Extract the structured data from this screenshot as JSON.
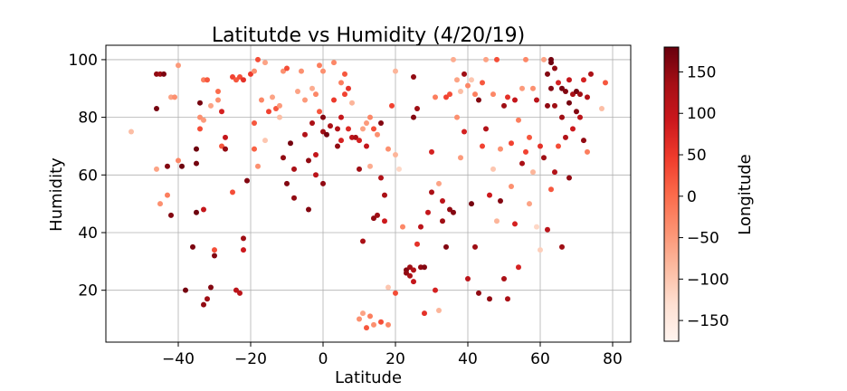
{
  "chart_data": {
    "type": "scatter",
    "title": "Latitutde vs Humidity (4/20/19)",
    "xlabel": "Latitude",
    "ylabel": "Humidity",
    "colorbar_label": "Longitude",
    "xlim": [
      -60,
      85
    ],
    "ylim": [
      2,
      105
    ],
    "clim": [
      -175,
      180
    ],
    "xticks": [
      -40,
      -20,
      0,
      20,
      40,
      60,
      80
    ],
    "yticks": [
      20,
      40,
      60,
      80,
      100
    ],
    "cticks": [
      -150,
      -100,
      -50,
      0,
      50,
      100,
      150
    ],
    "colormap": "Reds",
    "grid": true,
    "points": [
      {
        "x": -53,
        "y": 75,
        "c": -90
      },
      {
        "x": -46,
        "y": 95,
        "c": 150
      },
      {
        "x": -45,
        "y": 95,
        "c": 140
      },
      {
        "x": -44,
        "y": 95,
        "c": 165
      },
      {
        "x": -46,
        "y": 83,
        "c": 170
      },
      {
        "x": -46,
        "y": 62,
        "c": -60
      },
      {
        "x": -43,
        "y": 63,
        "c": 160
      },
      {
        "x": -42,
        "y": 87,
        "c": -60
      },
      {
        "x": -41,
        "y": 87,
        "c": -40
      },
      {
        "x": -40,
        "y": 98,
        "c": -50
      },
      {
        "x": -40,
        "y": 65,
        "c": -30
      },
      {
        "x": -39,
        "y": 63,
        "c": 175
      },
      {
        "x": -43,
        "y": 53,
        "c": -20
      },
      {
        "x": -45,
        "y": 50,
        "c": -40
      },
      {
        "x": -42,
        "y": 46,
        "c": 160
      },
      {
        "x": -38,
        "y": 20,
        "c": 170
      },
      {
        "x": -36,
        "y": 35,
        "c": 165
      },
      {
        "x": -35,
        "y": 47,
        "c": 175
      },
      {
        "x": -35,
        "y": 64,
        "c": 170
      },
      {
        "x": -35,
        "y": 69,
        "c": 175
      },
      {
        "x": -34,
        "y": 85,
        "c": 170
      },
      {
        "x": -34,
        "y": 80,
        "c": -40
      },
      {
        "x": -33,
        "y": 93,
        "c": -20
      },
      {
        "x": -32,
        "y": 93,
        "c": 20
      },
      {
        "x": -34,
        "y": 76,
        "c": 30
      },
      {
        "x": -33,
        "y": 79,
        "c": -50
      },
      {
        "x": -33,
        "y": 48,
        "c": 100
      },
      {
        "x": -33,
        "y": 15,
        "c": 150
      },
      {
        "x": -32,
        "y": 17,
        "c": 140
      },
      {
        "x": -31,
        "y": 21,
        "c": 160
      },
      {
        "x": -30,
        "y": 34,
        "c": 30
      },
      {
        "x": -30,
        "y": 32,
        "c": 160
      },
      {
        "x": -31,
        "y": 84,
        "c": -60
      },
      {
        "x": -29,
        "y": 89,
        "c": 0
      },
      {
        "x": -29,
        "y": 86,
        "c": -40
      },
      {
        "x": -28,
        "y": 70,
        "c": 20
      },
      {
        "x": -27,
        "y": 73,
        "c": 100
      },
      {
        "x": -28,
        "y": 82,
        "c": 80
      },
      {
        "x": -27,
        "y": 69,
        "c": 150
      },
      {
        "x": -25,
        "y": 94,
        "c": 40
      },
      {
        "x": -24,
        "y": 93,
        "c": 20
      },
      {
        "x": -23,
        "y": 94,
        "c": 30
      },
      {
        "x": -22,
        "y": 93,
        "c": 60
      },
      {
        "x": -25,
        "y": 54,
        "c": 30
      },
      {
        "x": -24,
        "y": 20,
        "c": 110
      },
      {
        "x": -22,
        "y": 38,
        "c": 140
      },
      {
        "x": -23,
        "y": 19,
        "c": 110
      },
      {
        "x": -22,
        "y": 34,
        "c": 90
      },
      {
        "x": -21,
        "y": 58,
        "c": 160
      },
      {
        "x": -20,
        "y": 95,
        "c": 50
      },
      {
        "x": -19,
        "y": 96,
        "c": -40
      },
      {
        "x": -18,
        "y": 100,
        "c": 30
      },
      {
        "x": -17,
        "y": 86,
        "c": -30
      },
      {
        "x": -16,
        "y": 99,
        "c": -60
      },
      {
        "x": -15,
        "y": 82,
        "c": 40
      },
      {
        "x": -14,
        "y": 87,
        "c": -60
      },
      {
        "x": -13,
        "y": 83,
        "c": 20
      },
      {
        "x": -12,
        "y": 84,
        "c": -50
      },
      {
        "x": -11,
        "y": 96,
        "c": -40
      },
      {
        "x": -10,
        "y": 97,
        "c": 30
      },
      {
        "x": -19,
        "y": 78,
        "c": 20
      },
      {
        "x": -19,
        "y": 69,
        "c": 10
      },
      {
        "x": -18,
        "y": 63,
        "c": -40
      },
      {
        "x": -16,
        "y": 72,
        "c": -100
      },
      {
        "x": -12,
        "y": 80,
        "c": -90
      },
      {
        "x": -11,
        "y": 66,
        "c": 150
      },
      {
        "x": -10,
        "y": 57,
        "c": 160
      },
      {
        "x": -9,
        "y": 71,
        "c": 170
      },
      {
        "x": -8,
        "y": 62,
        "c": 130
      },
      {
        "x": -8,
        "y": 52,
        "c": 150
      },
      {
        "x": -7,
        "y": 89,
        "c": -60
      },
      {
        "x": -6,
        "y": 96,
        "c": -40
      },
      {
        "x": -5,
        "y": 86,
        "c": -50
      },
      {
        "x": -5,
        "y": 74,
        "c": 120
      },
      {
        "x": -4,
        "y": 65,
        "c": 150
      },
      {
        "x": -4,
        "y": 48,
        "c": 160
      },
      {
        "x": -3,
        "y": 90,
        "c": -70
      },
      {
        "x": -3,
        "y": 78,
        "c": 130
      },
      {
        "x": -2,
        "y": 88,
        "c": -30
      },
      {
        "x": -2,
        "y": 67,
        "c": 100
      },
      {
        "x": -2,
        "y": 60,
        "c": 110
      },
      {
        "x": -1,
        "y": 98,
        "c": -20
      },
      {
        "x": -1,
        "y": 82,
        "c": 20
      },
      {
        "x": 0,
        "y": 96,
        "c": -40
      },
      {
        "x": 0,
        "y": 80,
        "c": 160
      },
      {
        "x": 0,
        "y": 75,
        "c": 140
      },
      {
        "x": 0,
        "y": 57,
        "c": 150
      },
      {
        "x": 1,
        "y": 74,
        "c": 170
      },
      {
        "x": 2,
        "y": 77,
        "c": 130
      },
      {
        "x": 3,
        "y": 99,
        "c": -30
      },
      {
        "x": 3,
        "y": 86,
        "c": 50
      },
      {
        "x": 4,
        "y": 76,
        "c": 120
      },
      {
        "x": 4,
        "y": 70,
        "c": 150
      },
      {
        "x": 5,
        "y": 72,
        "c": 80
      },
      {
        "x": 5,
        "y": 80,
        "c": 100
      },
      {
        "x": 5,
        "y": 92,
        "c": -20
      },
      {
        "x": 6,
        "y": 95,
        "c": 20
      },
      {
        "x": 6,
        "y": 88,
        "c": 40
      },
      {
        "x": 7,
        "y": 90,
        "c": 60
      },
      {
        "x": 7,
        "y": 76,
        "c": 70
      },
      {
        "x": 8,
        "y": 73,
        "c": 110
      },
      {
        "x": 8,
        "y": 85,
        "c": -80
      },
      {
        "x": 9,
        "y": 73,
        "c": 130
      },
      {
        "x": 10,
        "y": 72,
        "c": 80
      },
      {
        "x": 10,
        "y": 62,
        "c": 140
      },
      {
        "x": 11,
        "y": 76,
        "c": -60
      },
      {
        "x": 11,
        "y": 37,
        "c": 130
      },
      {
        "x": 12,
        "y": 78,
        "c": -50
      },
      {
        "x": 12,
        "y": 70,
        "c": 100
      },
      {
        "x": 13,
        "y": 63,
        "c": -70
      },
      {
        "x": 13,
        "y": 80,
        "c": -30
      },
      {
        "x": 14,
        "y": 76,
        "c": 30
      },
      {
        "x": 14,
        "y": 45,
        "c": 150
      },
      {
        "x": 15,
        "y": 74,
        "c": -40
      },
      {
        "x": 15,
        "y": 46,
        "c": 140
      },
      {
        "x": 16,
        "y": 78,
        "c": 160
      },
      {
        "x": 16,
        "y": 59,
        "c": 120
      },
      {
        "x": 17,
        "y": 53,
        "c": 130
      },
      {
        "x": 17,
        "y": 44,
        "c": 90
      },
      {
        "x": 18,
        "y": 69,
        "c": -40
      },
      {
        "x": 18,
        "y": 21,
        "c": -100
      },
      {
        "x": 10,
        "y": 10,
        "c": -40
      },
      {
        "x": 11,
        "y": 12,
        "c": -60
      },
      {
        "x": 12,
        "y": 7,
        "c": 20
      },
      {
        "x": 13,
        "y": 11,
        "c": -20
      },
      {
        "x": 14,
        "y": 8,
        "c": -40
      },
      {
        "x": 16,
        "y": 9,
        "c": 30
      },
      {
        "x": 18,
        "y": 8,
        "c": -30
      },
      {
        "x": 19,
        "y": 84,
        "c": 40
      },
      {
        "x": 20,
        "y": 96,
        "c": -80
      },
      {
        "x": 20,
        "y": 67,
        "c": -80
      },
      {
        "x": 20,
        "y": 19,
        "c": 30
      },
      {
        "x": 21,
        "y": 62,
        "c": -120
      },
      {
        "x": 22,
        "y": 42,
        "c": -30
      },
      {
        "x": 23,
        "y": 27,
        "c": 160
      },
      {
        "x": 23,
        "y": 26,
        "c": 150
      },
      {
        "x": 24,
        "y": 28,
        "c": 140
      },
      {
        "x": 24,
        "y": 25,
        "c": 130
      },
      {
        "x": 25,
        "y": 94,
        "c": 150
      },
      {
        "x": 25,
        "y": 80,
        "c": 160
      },
      {
        "x": 25,
        "y": 27,
        "c": 120
      },
      {
        "x": 25,
        "y": 23,
        "c": 100
      },
      {
        "x": 26,
        "y": 83,
        "c": 140
      },
      {
        "x": 26,
        "y": 36,
        "c": 60
      },
      {
        "x": 27,
        "y": 42,
        "c": 110
      },
      {
        "x": 27,
        "y": 28,
        "c": 150
      },
      {
        "x": 28,
        "y": 12,
        "c": 60
      },
      {
        "x": 28,
        "y": 28,
        "c": 160
      },
      {
        "x": 29,
        "y": 47,
        "c": 100
      },
      {
        "x": 30,
        "y": 54,
        "c": 130
      },
      {
        "x": 30,
        "y": 68,
        "c": 80
      },
      {
        "x": 31,
        "y": 87,
        "c": -20
      },
      {
        "x": 31,
        "y": 20,
        "c": 80
      },
      {
        "x": 32,
        "y": 57,
        "c": -60
      },
      {
        "x": 32,
        "y": 13,
        "c": -80
      },
      {
        "x": 33,
        "y": 51,
        "c": 110
      },
      {
        "x": 33,
        "y": 44,
        "c": 140
      },
      {
        "x": 34,
        "y": 35,
        "c": 160
      },
      {
        "x": 34,
        "y": 87,
        "c": 40
      },
      {
        "x": 35,
        "y": 88,
        "c": 30
      },
      {
        "x": 35,
        "y": 48,
        "c": 150
      },
      {
        "x": 36,
        "y": 100,
        "c": -70
      },
      {
        "x": 36,
        "y": 47,
        "c": 160
      },
      {
        "x": 37,
        "y": 93,
        "c": -60
      },
      {
        "x": 37,
        "y": 80,
        "c": -40
      },
      {
        "x": 38,
        "y": 89,
        "c": -90
      },
      {
        "x": 38,
        "y": 66,
        "c": -50
      },
      {
        "x": 39,
        "y": 95,
        "c": 140
      },
      {
        "x": 39,
        "y": 75,
        "c": 80
      },
      {
        "x": 40,
        "y": 91,
        "c": -30
      },
      {
        "x": 40,
        "y": 24,
        "c": 110
      },
      {
        "x": 41,
        "y": 93,
        "c": -100
      },
      {
        "x": 41,
        "y": 50,
        "c": 170
      },
      {
        "x": 42,
        "y": 88,
        "c": -20
      },
      {
        "x": 42,
        "y": 35,
        "c": 140
      },
      {
        "x": 43,
        "y": 86,
        "c": 160
      },
      {
        "x": 43,
        "y": 19,
        "c": 150
      },
      {
        "x": 44,
        "y": 92,
        "c": 20
      },
      {
        "x": 44,
        "y": 70,
        "c": 40
      },
      {
        "x": 45,
        "y": 100,
        "c": -60
      },
      {
        "x": 45,
        "y": 76,
        "c": 120
      },
      {
        "x": 46,
        "y": 53,
        "c": 90
      },
      {
        "x": 46,
        "y": 17,
        "c": 150
      },
      {
        "x": 47,
        "y": 88,
        "c": -30
      },
      {
        "x": 47,
        "y": 62,
        "c": -100
      },
      {
        "x": 48,
        "y": 100,
        "c": 30
      },
      {
        "x": 48,
        "y": 44,
        "c": -80
      },
      {
        "x": 49,
        "y": 69,
        "c": -40
      },
      {
        "x": 49,
        "y": 51,
        "c": 160
      },
      {
        "x": 50,
        "y": 84,
        "c": 140
      },
      {
        "x": 50,
        "y": 24,
        "c": 130
      },
      {
        "x": 51,
        "y": 87,
        "c": 60
      },
      {
        "x": 51,
        "y": 17,
        "c": 130
      },
      {
        "x": 52,
        "y": 71,
        "c": 40
      },
      {
        "x": 52,
        "y": 56,
        "c": -40
      },
      {
        "x": 53,
        "y": 86,
        "c": 100
      },
      {
        "x": 53,
        "y": 43,
        "c": 80
      },
      {
        "x": 54,
        "y": 79,
        "c": -20
      },
      {
        "x": 54,
        "y": 28,
        "c": 80
      },
      {
        "x": 55,
        "y": 90,
        "c": -50
      },
      {
        "x": 55,
        "y": 64,
        "c": 130
      },
      {
        "x": 56,
        "y": 100,
        "c": -30
      },
      {
        "x": 56,
        "y": 68,
        "c": 40
      },
      {
        "x": 57,
        "y": 73,
        "c": 20
      },
      {
        "x": 57,
        "y": 50,
        "c": -60
      },
      {
        "x": 58,
        "y": 90,
        "c": -40
      },
      {
        "x": 58,
        "y": 61,
        "c": -80
      },
      {
        "x": 59,
        "y": 86,
        "c": 110
      },
      {
        "x": 59,
        "y": 42,
        "c": -120
      },
      {
        "x": 60,
        "y": 70,
        "c": 60
      },
      {
        "x": 60,
        "y": 34,
        "c": -110
      },
      {
        "x": 61,
        "y": 100,
        "c": -60
      },
      {
        "x": 61,
        "y": 66,
        "c": 140
      },
      {
        "x": 62,
        "y": 95,
        "c": 160
      },
      {
        "x": 62,
        "y": 84,
        "c": 150
      },
      {
        "x": 62,
        "y": 41,
        "c": 110
      },
      {
        "x": 63,
        "y": 100,
        "c": 170
      },
      {
        "x": 63,
        "y": 99,
        "c": 175
      },
      {
        "x": 63,
        "y": 90,
        "c": 160
      },
      {
        "x": 63,
        "y": 55,
        "c": 20
      },
      {
        "x": 64,
        "y": 97,
        "c": 150
      },
      {
        "x": 64,
        "y": 84,
        "c": 140
      },
      {
        "x": 64,
        "y": 61,
        "c": 120
      },
      {
        "x": 65,
        "y": 92,
        "c": 80
      },
      {
        "x": 65,
        "y": 70,
        "c": 30
      },
      {
        "x": 66,
        "y": 90,
        "c": 170
      },
      {
        "x": 66,
        "y": 80,
        "c": 140
      },
      {
        "x": 66,
        "y": 35,
        "c": 140
      },
      {
        "x": 67,
        "y": 89,
        "c": 160
      },
      {
        "x": 67,
        "y": 73,
        "c": 120
      },
      {
        "x": 68,
        "y": 93,
        "c": 100
      },
      {
        "x": 68,
        "y": 85,
        "c": 170
      },
      {
        "x": 68,
        "y": 59,
        "c": 150
      },
      {
        "x": 69,
        "y": 88,
        "c": 130
      },
      {
        "x": 69,
        "y": 76,
        "c": 90
      },
      {
        "x": 70,
        "y": 89,
        "c": 170
      },
      {
        "x": 70,
        "y": 82,
        "c": 160
      },
      {
        "x": 71,
        "y": 88,
        "c": 140
      },
      {
        "x": 71,
        "y": 80,
        "c": 110
      },
      {
        "x": 72,
        "y": 93,
        "c": 80
      },
      {
        "x": 72,
        "y": 72,
        "c": 150
      },
      {
        "x": 73,
        "y": 87,
        "c": 120
      },
      {
        "x": 73,
        "y": 68,
        "c": -20
      },
      {
        "x": 74,
        "y": 95,
        "c": 130
      },
      {
        "x": 77,
        "y": 83,
        "c": -90
      },
      {
        "x": 78,
        "y": 92,
        "c": 20
      }
    ]
  }
}
